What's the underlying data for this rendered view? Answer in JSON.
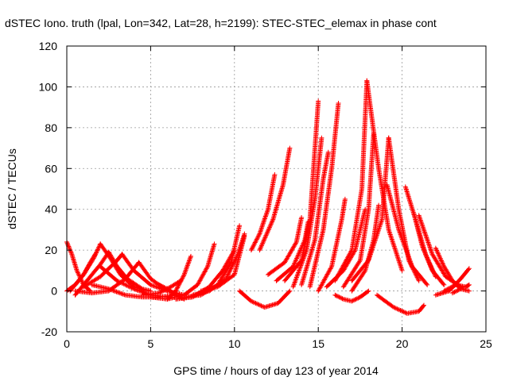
{
  "chart_data": {
    "type": "scatter",
    "title": "dSTEC Iono. truth (lpal, Lon=342, Lat=28, h=2199): STEC-STEC_elemax in phase cont",
    "xlabel": "GPS time / hours of day 123 of year 2014",
    "ylabel": "dSTEC  / TECUs",
    "xlim": [
      0,
      25
    ],
    "ylim": [
      -20,
      120
    ],
    "xticks": [
      0,
      5,
      10,
      15,
      20,
      25
    ],
    "yticks": [
      -20,
      0,
      20,
      40,
      60,
      80,
      100,
      120
    ],
    "grid": true,
    "marker": "+",
    "color": "#ff0000",
    "tracks": [
      {
        "x": [
          0.0,
          0.3,
          0.6,
          1.0,
          1.4
        ],
        "y": [
          24,
          18,
          10,
          3,
          0
        ]
      },
      {
        "x": [
          0.0,
          0.5,
          1.0,
          1.4,
          1.7
        ],
        "y": [
          0,
          3,
          8,
          14,
          18
        ]
      },
      {
        "x": [
          0.2,
          1.0,
          1.6,
          2.0
        ],
        "y": [
          0,
          8,
          16,
          23
        ]
      },
      {
        "x": [
          2.0,
          2.6,
          3.2,
          4.0,
          5.0
        ],
        "y": [
          23,
          16,
          8,
          2,
          0
        ]
      },
      {
        "x": [
          0.5,
          1.2,
          2.0,
          2.5
        ],
        "y": [
          -2,
          5,
          13,
          19
        ]
      },
      {
        "x": [
          2.5,
          3.0,
          3.6,
          4.5
        ],
        "y": [
          19,
          12,
          6,
          1
        ]
      },
      {
        "x": [
          1.0,
          2.0,
          3.0,
          3.3
        ],
        "y": [
          2,
          7,
          15,
          18
        ]
      },
      {
        "x": [
          3.3,
          4.0,
          5.0,
          6.0
        ],
        "y": [
          18,
          10,
          3,
          0
        ]
      },
      {
        "x": [
          0.5,
          1.5,
          2.5,
          3.5,
          4.3
        ],
        "y": [
          0,
          -1,
          0,
          6,
          14
        ]
      },
      {
        "x": [
          4.3,
          5.0,
          6.0,
          7.0
        ],
        "y": [
          14,
          6,
          0,
          -2
        ]
      },
      {
        "x": [
          1.5,
          2.5,
          3.5,
          4.5,
          5.5,
          6.5
        ],
        "y": [
          3,
          1,
          -2,
          -3,
          -3,
          -2
        ]
      },
      {
        "x": [
          2.0,
          3.0,
          4.0,
          5.0,
          6.0
        ],
        "y": [
          12,
          5,
          1,
          -2,
          -3
        ]
      },
      {
        "x": [
          4.5,
          5.5,
          6.2,
          6.8
        ],
        "y": [
          -2,
          -1,
          2,
          5
        ]
      },
      {
        "x": [
          5.5,
          6.0,
          6.5,
          7.0
        ],
        "y": [
          3,
          1,
          -2,
          -4
        ]
      },
      {
        "x": [
          5.0,
          6.0,
          6.5,
          7.0,
          7.4
        ],
        "y": [
          -3,
          -4,
          0,
          8,
          17
        ]
      },
      {
        "x": [
          6.0,
          7.0,
          7.8,
          8.4,
          8.8
        ],
        "y": [
          -4,
          -2,
          3,
          12,
          23
        ]
      },
      {
        "x": [
          6.5,
          7.5,
          8.5,
          9.3,
          10.0
        ],
        "y": [
          -4,
          -3,
          2,
          10,
          20
        ]
      },
      {
        "x": [
          7.0,
          8.0,
          9.0,
          9.8,
          10.3
        ],
        "y": [
          -3,
          -2,
          3,
          14,
          32
        ]
      },
      {
        "x": [
          7.5,
          8.5,
          9.5,
          10.2,
          10.6
        ],
        "y": [
          -2,
          0,
          6,
          18,
          28
        ]
      },
      {
        "x": [
          8.0,
          9.0,
          10.0,
          10.6
        ],
        "y": [
          0,
          2,
          8,
          27
        ]
      },
      {
        "x": [
          10.3,
          11.0,
          11.8,
          12.6,
          13.3
        ],
        "y": [
          0,
          -5,
          -8,
          -6,
          0
        ]
      },
      {
        "x": [
          11.0,
          11.5,
          12.0,
          12.4
        ],
        "y": [
          20,
          28,
          40,
          57
        ]
      },
      {
        "x": [
          11.5,
          12.3,
          12.9,
          13.3
        ],
        "y": [
          20,
          35,
          52,
          70
        ]
      },
      {
        "x": [
          12.0,
          13.0,
          13.7,
          14.0
        ],
        "y": [
          8,
          14,
          24,
          36
        ]
      },
      {
        "x": [
          12.5,
          13.5,
          14.2,
          14.4
        ],
        "y": [
          5,
          12,
          25,
          34
        ]
      },
      {
        "x": [
          13.0,
          14.0,
          14.5,
          15.0
        ],
        "y": [
          5,
          15,
          35,
          93
        ]
      },
      {
        "x": [
          13.5,
          14.3,
          14.8,
          15.2
        ],
        "y": [
          2,
          20,
          45,
          75
        ]
      },
      {
        "x": [
          14.0,
          14.8,
          15.3,
          15.6
        ],
        "y": [
          3,
          25,
          55,
          68
        ]
      },
      {
        "x": [
          14.5,
          15.3,
          15.8,
          16.2
        ],
        "y": [
          2,
          30,
          60,
          92
        ]
      },
      {
        "x": [
          15.0,
          15.8,
          16.4,
          16.6
        ],
        "y": [
          0,
          12,
          35,
          45
        ]
      },
      {
        "x": [
          16.0,
          16.5,
          17.0,
          17.5,
          18.0
        ],
        "y": [
          -2,
          -4,
          -5,
          -3,
          0
        ]
      },
      {
        "x": [
          15.5,
          16.5,
          17.2,
          17.8
        ],
        "y": [
          2,
          10,
          20,
          40
        ]
      },
      {
        "x": [
          16.0,
          17.0,
          17.6,
          17.9
        ],
        "y": [
          5,
          20,
          50,
          103
        ]
      },
      {
        "x": [
          16.5,
          17.5,
          18.0,
          18.3
        ],
        "y": [
          2,
          15,
          40,
          77
        ]
      },
      {
        "x": [
          17.0,
          17.8,
          18.3,
          18.6
        ],
        "y": [
          0,
          10,
          25,
          42
        ]
      },
      {
        "x": [
          17.9,
          18.6,
          19.2,
          20.0
        ],
        "y": [
          103,
          60,
          30,
          10
        ]
      },
      {
        "x": [
          17.0,
          18.0,
          18.8,
          19.2
        ],
        "y": [
          5,
          15,
          35,
          75
        ]
      },
      {
        "x": [
          19.2,
          19.8,
          20.4,
          21.0
        ],
        "y": [
          75,
          40,
          15,
          5
        ]
      },
      {
        "x": [
          19.1,
          19.8,
          20.6,
          21.5
        ],
        "y": [
          52,
          30,
          12,
          3
        ]
      },
      {
        "x": [
          18.5,
          19.5,
          20.3,
          21.0,
          21.3
        ],
        "y": [
          -2,
          -8,
          -11,
          -10,
          -7
        ]
      },
      {
        "x": [
          20.2,
          20.8,
          21.4,
          22.0
        ],
        "y": [
          51,
          35,
          18,
          7
        ]
      },
      {
        "x": [
          20.7,
          21.2,
          21.8,
          22.5
        ],
        "y": [
          38,
          22,
          10,
          3
        ]
      },
      {
        "x": [
          21.0,
          21.8,
          22.6,
          23.5
        ],
        "y": [
          37,
          18,
          7,
          2
        ]
      },
      {
        "x": [
          22.0,
          22.5,
          23.0,
          23.5
        ],
        "y": [
          21,
          12,
          5,
          1
        ]
      },
      {
        "x": [
          22.0,
          22.8,
          23.5,
          24.0
        ],
        "y": [
          -2,
          0,
          6,
          11
        ]
      },
      {
        "x": [
          22.5,
          23.2,
          23.8,
          24.0
        ],
        "y": [
          0,
          3,
          2,
          3
        ]
      },
      {
        "x": [
          23.0,
          23.5,
          24.0
        ],
        "y": [
          -1,
          1,
          0
        ]
      }
    ]
  }
}
